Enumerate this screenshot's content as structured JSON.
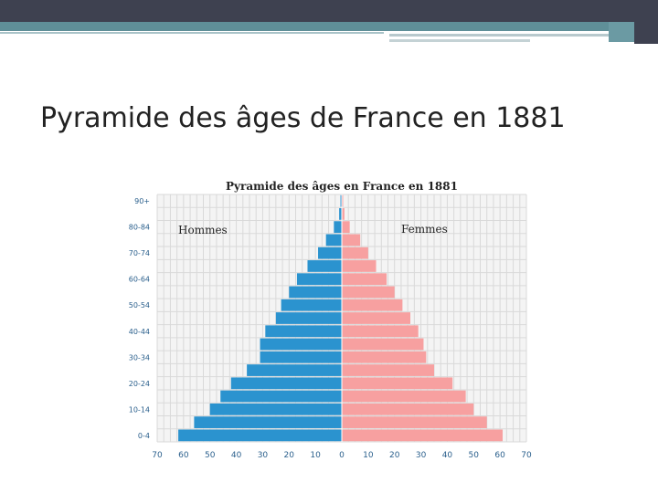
{
  "slide": {
    "title": "Pyramide des âges de France en 1881"
  },
  "colors": {
    "header_dark": "#3e4150",
    "header_teal": "#5f8f98",
    "male": "#2b93cf",
    "female": "#f7a0a0",
    "grid": "#d9d9d9",
    "tick_label": "#2a5f8c"
  },
  "chart_data": {
    "type": "bar",
    "orientation": "horizontal",
    "title": "Pyramide des âges en France en 1881",
    "categories": [
      "0-4",
      "",
      "10-14",
      "",
      "20-24",
      "",
      "30-34",
      "",
      "40-44",
      "",
      "50-54",
      "",
      "60-64",
      "",
      "70-74",
      "",
      "80-84",
      "",
      "90+"
    ],
    "series": [
      {
        "name": "Hommes",
        "values": [
          62,
          56,
          50,
          46,
          42,
          36,
          31,
          31,
          29,
          25,
          23,
          20,
          17,
          13,
          9,
          6,
          3,
          1,
          0.5
        ]
      },
      {
        "name": "Femmes",
        "values": [
          61,
          55,
          50,
          47,
          42,
          35,
          32,
          31,
          29,
          26,
          23,
          20,
          17,
          13,
          10,
          7,
          3,
          1,
          0.5
        ]
      }
    ],
    "xticks": [
      "70",
      "60",
      "50",
      "40",
      "30",
      "20",
      "10",
      "0",
      "10",
      "20",
      "30",
      "40",
      "50",
      "60",
      "70"
    ],
    "xlim": [
      -70,
      70
    ],
    "grid": true
  }
}
